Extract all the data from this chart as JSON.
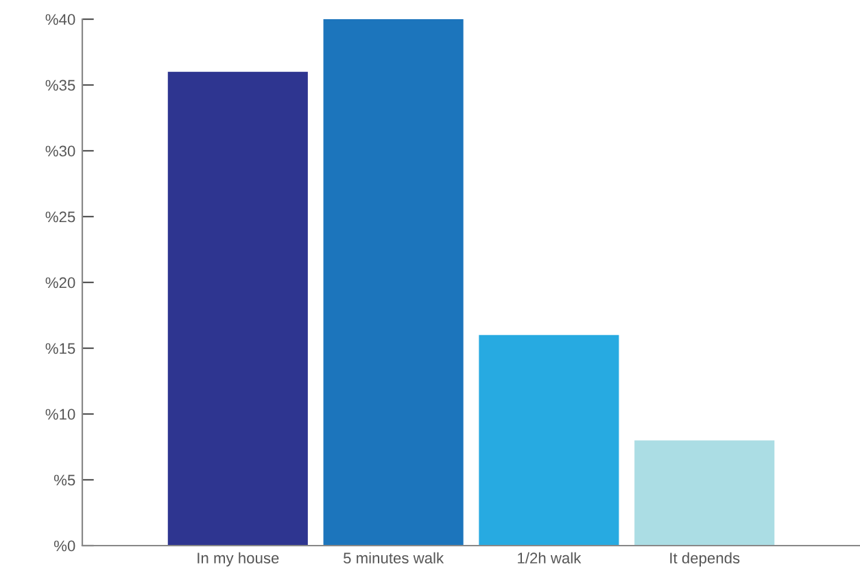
{
  "chart_data": {
    "type": "bar",
    "categories": [
      "In my house",
      "5 minutes walk",
      "1/2h walk",
      "It depends"
    ],
    "values": [
      36,
      40,
      16,
      8
    ],
    "colors": [
      "#2e3590",
      "#1c75bc",
      "#27aae1",
      "#abdde4"
    ],
    "ylim": [
      0,
      40
    ],
    "yticks": [
      {
        "value": 0,
        "label": "%0"
      },
      {
        "value": 5,
        "label": "%5"
      },
      {
        "value": 10,
        "label": "%10"
      },
      {
        "value": 15,
        "label": "%15"
      },
      {
        "value": 20,
        "label": "%20"
      },
      {
        "value": 25,
        "label": "%25"
      },
      {
        "value": 30,
        "label": "%30"
      },
      {
        "value": 35,
        "label": "%35"
      },
      {
        "value": 40,
        "label": "%40"
      }
    ],
    "grid": false
  }
}
